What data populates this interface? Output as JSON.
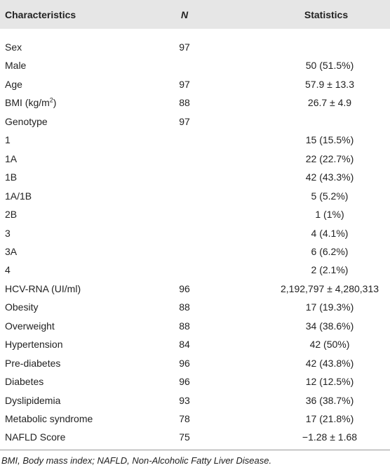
{
  "table": {
    "header": [
      "Characteristics",
      "N",
      "Statistics"
    ],
    "rows": [
      [
        "Sex",
        "97",
        null
      ],
      [
        "Male",
        null,
        "50 (51.5%)"
      ],
      [
        "Age",
        "97",
        "57.9 ± 13.3"
      ],
      [
        [
          "BMI (kg/m",
          "2",
          ")"
        ],
        "88",
        "26.7 ± 4.9"
      ],
      [
        "Genotype",
        "97",
        null
      ],
      [
        "1",
        null,
        "15 (15.5%)"
      ],
      [
        "1A",
        null,
        "22 (22.7%)"
      ],
      [
        "1B",
        null,
        "42 (43.3%)"
      ],
      [
        "1A/1B",
        null,
        "5 (5.2%)"
      ],
      [
        "2B",
        null,
        "1 (1%)"
      ],
      [
        "3",
        null,
        "4 (4.1%)"
      ],
      [
        "3A",
        null,
        "6 (6.2%)"
      ],
      [
        "4",
        null,
        "2 (2.1%)"
      ],
      [
        "HCV-RNA (UI/ml)",
        "96",
        "2,192,797 ± 4,280,313"
      ],
      [
        "Obesity",
        "88",
        "17 (19.3%)"
      ],
      [
        "Overweight",
        "88",
        "34 (38.6%)"
      ],
      [
        "Hypertension",
        "84",
        "42 (50%)"
      ],
      [
        "Pre-diabetes",
        "96",
        "42 (43.8%)"
      ],
      [
        "Diabetes",
        "96",
        "12 (12.5%)"
      ],
      [
        "Dyslipidemia",
        "93",
        "36 (38.7%)"
      ],
      [
        "Metabolic syndrome",
        "78",
        "17 (21.8%)"
      ],
      [
        "NAFLD Score",
        "75",
        "−1.28 ± 1.68"
      ]
    ],
    "footnote": "BMI, Body mass index; NAFLD, Non-Alcoholic Fatty Liver Disease."
  }
}
